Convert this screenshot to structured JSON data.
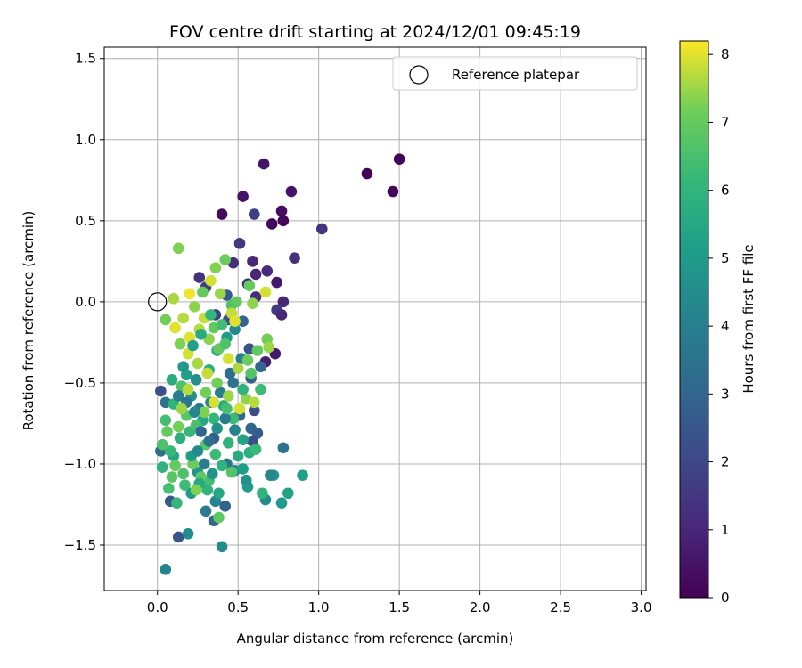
{
  "chart_data": {
    "type": "scatter",
    "title": "FOV centre drift starting at 2024/12/01 09:45:19",
    "xlabel": "Angular distance from reference (arcmin)",
    "ylabel": "Rotation from reference (arcmin)",
    "xlim": [
      -0.33,
      3.03
    ],
    "ylim": [
      -1.78,
      1.57
    ],
    "xticks": [
      0.0,
      0.5,
      1.0,
      1.5,
      2.0,
      2.5,
      3.0
    ],
    "xtick_labels": [
      "0.0",
      "0.5",
      "1.0",
      "1.5",
      "2.0",
      "2.5",
      "3.0"
    ],
    "yticks": [
      -1.5,
      -1.0,
      -0.5,
      0.0,
      0.5,
      1.0,
      1.5
    ],
    "ytick_labels": [
      "−1.5",
      "−1.0",
      "−0.5",
      "0.0",
      "0.5",
      "1.0",
      "1.5"
    ],
    "grid": true,
    "legend": {
      "position": "top-right",
      "label": "Reference platepar"
    },
    "reference_point": {
      "x": 0.0,
      "y": 0.0
    },
    "colorbar": {
      "label": "Hours from first FF file",
      "min": 0,
      "max": 8.2,
      "ticks": [
        0,
        1,
        2,
        3,
        4,
        5,
        6,
        7,
        8
      ],
      "tick_labels": [
        "0",
        "1",
        "2",
        "3",
        "4",
        "5",
        "6",
        "7",
        "8"
      ],
      "colormap": "viridis"
    },
    "points": [
      {
        "x": 1.5,
        "y": 0.88,
        "h": 0.1
      },
      {
        "x": 1.3,
        "y": 0.79,
        "h": 0.1
      },
      {
        "x": 1.46,
        "y": 0.68,
        "h": 0.1
      },
      {
        "x": 0.66,
        "y": 0.85,
        "h": 0.5
      },
      {
        "x": 0.83,
        "y": 0.68,
        "h": 0.5
      },
      {
        "x": 0.53,
        "y": 0.65,
        "h": 0.5
      },
      {
        "x": 0.77,
        "y": 0.56,
        "h": 0.3
      },
      {
        "x": 0.78,
        "y": 0.5,
        "h": 0.2
      },
      {
        "x": 0.71,
        "y": 0.48,
        "h": 0.2
      },
      {
        "x": 0.4,
        "y": 0.54,
        "h": 0.2
      },
      {
        "x": 0.6,
        "y": 0.54,
        "h": 1.8
      },
      {
        "x": 1.02,
        "y": 0.45,
        "h": 1.4
      },
      {
        "x": 0.51,
        "y": 0.36,
        "h": 1.5
      },
      {
        "x": 0.85,
        "y": 0.27,
        "h": 1.3
      },
      {
        "x": 0.59,
        "y": 0.25,
        "h": 1.0
      },
      {
        "x": 0.47,
        "y": 0.24,
        "h": 1.2
      },
      {
        "x": 0.68,
        "y": 0.19,
        "h": 1.1
      },
      {
        "x": 0.61,
        "y": 0.17,
        "h": 1.0
      },
      {
        "x": 0.74,
        "y": 0.12,
        "h": 0.6
      },
      {
        "x": 0.56,
        "y": 0.11,
        "h": 1.0
      },
      {
        "x": 0.26,
        "y": 0.15,
        "h": 1.4
      },
      {
        "x": 0.3,
        "y": 0.09,
        "h": 1.6
      },
      {
        "x": 0.43,
        "y": 0.04,
        "h": 2.5
      },
      {
        "x": 0.61,
        "y": 0.03,
        "h": 1.2
      },
      {
        "x": 0.78,
        "y": 0.0,
        "h": 1.0
      },
      {
        "x": 0.74,
        "y": -0.05,
        "h": 1.6
      },
      {
        "x": 0.77,
        "y": -0.08,
        "h": 1.0
      },
      {
        "x": 0.44,
        "y": -0.11,
        "h": 2.2
      },
      {
        "x": 0.53,
        "y": -0.12,
        "h": 3.0
      },
      {
        "x": 0.36,
        "y": -0.08,
        "h": 1.8
      },
      {
        "x": 0.57,
        "y": -0.29,
        "h": 2.3
      },
      {
        "x": 0.67,
        "y": -0.37,
        "h": 0.8
      },
      {
        "x": 0.73,
        "y": -0.32,
        "h": 0.6
      },
      {
        "x": 0.64,
        "y": -0.4,
        "h": 3.0
      },
      {
        "x": 0.58,
        "y": -0.47,
        "h": 2.8
      },
      {
        "x": 0.47,
        "y": -0.5,
        "h": 3.5
      },
      {
        "x": 0.02,
        "y": -0.55,
        "h": 2.2
      },
      {
        "x": 0.05,
        "y": -0.62,
        "h": 3.5
      },
      {
        "x": 0.6,
        "y": -0.67,
        "h": 2.2
      },
      {
        "x": 0.51,
        "y": -0.7,
        "h": 3.2
      },
      {
        "x": 0.58,
        "y": -0.78,
        "h": 3.0
      },
      {
        "x": 0.62,
        "y": -0.81,
        "h": 2.7
      },
      {
        "x": 0.78,
        "y": -0.9,
        "h": 3.5
      },
      {
        "x": 0.59,
        "y": -0.86,
        "h": 2.2
      },
      {
        "x": 0.35,
        "y": -0.84,
        "h": 2.8
      },
      {
        "x": 0.02,
        "y": -0.92,
        "h": 3.2
      },
      {
        "x": 0.08,
        "y": -1.23,
        "h": 2.5
      },
      {
        "x": 0.13,
        "y": -1.45,
        "h": 2.4
      },
      {
        "x": 0.19,
        "y": -1.43,
        "h": 4.5
      },
      {
        "x": 0.05,
        "y": -1.65,
        "h": 4.2
      },
      {
        "x": 0.4,
        "y": -1.51,
        "h": 4.5
      },
      {
        "x": 0.42,
        "y": -1.26,
        "h": 2.9
      },
      {
        "x": 0.35,
        "y": -1.35,
        "h": 3.0
      },
      {
        "x": 0.3,
        "y": -1.29,
        "h": 3.8
      },
      {
        "x": 0.36,
        "y": -1.23,
        "h": 4.2
      },
      {
        "x": 0.67,
        "y": -1.22,
        "h": 4.4
      },
      {
        "x": 0.77,
        "y": -1.24,
        "h": 5.0
      },
      {
        "x": 0.81,
        "y": -1.18,
        "h": 5.3
      },
      {
        "x": 0.72,
        "y": -1.07,
        "h": 4.8
      },
      {
        "x": 0.7,
        "y": -1.07,
        "h": 4.3
      },
      {
        "x": 0.9,
        "y": -1.07,
        "h": 5.2
      },
      {
        "x": 0.56,
        "y": -1.14,
        "h": 5.0
      },
      {
        "x": 0.55,
        "y": -1.1,
        "h": 4.6
      },
      {
        "x": 0.65,
        "y": -1.18,
        "h": 6.0
      },
      {
        "x": 0.48,
        "y": -1.04,
        "h": 4.2
      },
      {
        "x": 0.43,
        "y": -1.0,
        "h": 3.6
      },
      {
        "x": 0.25,
        "y": -1.05,
        "h": 4.8
      },
      {
        "x": 0.21,
        "y": -1.18,
        "h": 5.0
      },
      {
        "x": 0.12,
        "y": -1.24,
        "h": 6.1
      },
      {
        "x": 0.07,
        "y": -1.15,
        "h": 6.5
      },
      {
        "x": 0.03,
        "y": -1.02,
        "h": 5.9
      },
      {
        "x": 0.1,
        "y": -0.95,
        "h": 5.5
      },
      {
        "x": 0.14,
        "y": -0.84,
        "h": 5.8
      },
      {
        "x": 0.05,
        "y": -0.73,
        "h": 6.4
      },
      {
        "x": 0.1,
        "y": -0.63,
        "h": 6.0
      },
      {
        "x": 0.15,
        "y": -0.52,
        "h": 6.6
      },
      {
        "x": 0.18,
        "y": -0.45,
        "h": 5.2
      },
      {
        "x": 0.24,
        "y": -0.48,
        "h": 4.6
      },
      {
        "x": 0.32,
        "y": -0.42,
        "h": 5.8
      },
      {
        "x": 0.37,
        "y": -0.3,
        "h": 5.5
      },
      {
        "x": 0.43,
        "y": -0.22,
        "h": 5.0
      },
      {
        "x": 0.48,
        "y": -0.17,
        "h": 4.4
      },
      {
        "x": 0.52,
        "y": -0.35,
        "h": 4.0
      },
      {
        "x": 0.45,
        "y": -0.44,
        "h": 3.3
      },
      {
        "x": 0.39,
        "y": -0.56,
        "h": 3.9
      },
      {
        "x": 0.33,
        "y": -0.62,
        "h": 4.1
      },
      {
        "x": 0.26,
        "y": -0.66,
        "h": 3.7
      },
      {
        "x": 0.21,
        "y": -0.58,
        "h": 4.7
      },
      {
        "x": 0.28,
        "y": -0.73,
        "h": 5.4
      },
      {
        "x": 0.2,
        "y": -0.8,
        "h": 6.2
      },
      {
        "x": 0.3,
        "y": -0.88,
        "h": 6.8
      },
      {
        "x": 0.36,
        "y": -0.94,
        "h": 6.3
      },
      {
        "x": 0.44,
        "y": -0.87,
        "h": 6.0
      },
      {
        "x": 0.5,
        "y": -0.95,
        "h": 5.6
      },
      {
        "x": 0.53,
        "y": -1.03,
        "h": 5.1
      },
      {
        "x": 0.46,
        "y": -1.05,
        "h": 6.7
      },
      {
        "x": 0.4,
        "y": -1.01,
        "h": 5.9
      },
      {
        "x": 0.32,
        "y": -1.1,
        "h": 6.4
      },
      {
        "x": 0.27,
        "y": -1.08,
        "h": 6.9
      },
      {
        "x": 0.22,
        "y": -1.0,
        "h": 7.1
      },
      {
        "x": 0.16,
        "y": -1.06,
        "h": 6.6
      },
      {
        "x": 0.11,
        "y": -1.01,
        "h": 7.0
      },
      {
        "x": 0.08,
        "y": -0.92,
        "h": 6.2
      },
      {
        "x": 0.13,
        "y": -0.77,
        "h": 7.2
      },
      {
        "x": 0.18,
        "y": -0.7,
        "h": 6.8
      },
      {
        "x": 0.24,
        "y": -0.76,
        "h": 6.5
      },
      {
        "x": 0.29,
        "y": -0.68,
        "h": 7.3
      },
      {
        "x": 0.35,
        "y": -0.72,
        "h": 6.1
      },
      {
        "x": 0.41,
        "y": -0.64,
        "h": 5.7
      },
      {
        "x": 0.47,
        "y": -0.72,
        "h": 6.3
      },
      {
        "x": 0.55,
        "y": -0.6,
        "h": 7.4
      },
      {
        "x": 0.6,
        "y": -0.62,
        "h": 7.7
      },
      {
        "x": 0.51,
        "y": -0.66,
        "h": 7.9
      },
      {
        "x": 0.44,
        "y": -0.58,
        "h": 7.5
      },
      {
        "x": 0.37,
        "y": -0.5,
        "h": 7.2
      },
      {
        "x": 0.31,
        "y": -0.44,
        "h": 7.8
      },
      {
        "x": 0.25,
        "y": -0.38,
        "h": 7.6
      },
      {
        "x": 0.19,
        "y": -0.32,
        "h": 7.9
      },
      {
        "x": 0.14,
        "y": -0.26,
        "h": 7.3
      },
      {
        "x": 0.2,
        "y": -0.22,
        "h": 8.0
      },
      {
        "x": 0.26,
        "y": -0.17,
        "h": 7.7
      },
      {
        "x": 0.32,
        "y": -0.23,
        "h": 7.4
      },
      {
        "x": 0.38,
        "y": -0.29,
        "h": 7.0
      },
      {
        "x": 0.44,
        "y": -0.35,
        "h": 7.9
      },
      {
        "x": 0.5,
        "y": -0.41,
        "h": 7.6
      },
      {
        "x": 0.56,
        "y": -0.36,
        "h": 7.1
      },
      {
        "x": 0.62,
        "y": -0.3,
        "h": 6.9
      },
      {
        "x": 0.68,
        "y": -0.23,
        "h": 7.2
      },
      {
        "x": 0.69,
        "y": -0.28,
        "h": 7.5
      },
      {
        "x": 0.58,
        "y": -0.44,
        "h": 6.7
      },
      {
        "x": 0.64,
        "y": -0.54,
        "h": 6.3
      },
      {
        "x": 0.53,
        "y": -0.54,
        "h": 5.9
      },
      {
        "x": 0.42,
        "y": -0.26,
        "h": 6.6
      },
      {
        "x": 0.35,
        "y": -0.16,
        "h": 7.0
      },
      {
        "x": 0.29,
        "y": -0.1,
        "h": 7.8
      },
      {
        "x": 0.23,
        "y": -0.03,
        "h": 7.4
      },
      {
        "x": 0.16,
        "y": -0.1,
        "h": 7.7
      },
      {
        "x": 0.11,
        "y": -0.16,
        "h": 8.0
      },
      {
        "x": 0.05,
        "y": -0.11,
        "h": 7.2
      },
      {
        "x": 0.1,
        "y": 0.02,
        "h": 7.6
      },
      {
        "x": 0.2,
        "y": 0.05,
        "h": 8.1
      },
      {
        "x": 0.28,
        "y": 0.06,
        "h": 7.0
      },
      {
        "x": 0.33,
        "y": 0.13,
        "h": 7.9
      },
      {
        "x": 0.36,
        "y": 0.21,
        "h": 7.3
      },
      {
        "x": 0.42,
        "y": 0.26,
        "h": 7.1
      },
      {
        "x": 0.39,
        "y": 0.05,
        "h": 7.5
      },
      {
        "x": 0.46,
        "y": -0.02,
        "h": 6.6
      },
      {
        "x": 0.49,
        "y": 0.0,
        "h": 6.9
      },
      {
        "x": 0.57,
        "y": 0.1,
        "h": 7.0
      },
      {
        "x": 0.59,
        "y": -0.01,
        "h": 7.4
      },
      {
        "x": 0.67,
        "y": 0.06,
        "h": 7.9
      },
      {
        "x": 0.13,
        "y": 0.33,
        "h": 7.3
      },
      {
        "x": 0.46,
        "y": -0.07,
        "h": 7.8
      },
      {
        "x": 0.48,
        "y": -0.12,
        "h": 8.0
      },
      {
        "x": 0.4,
        "y": -0.14,
        "h": 6.4
      },
      {
        "x": 0.33,
        "y": -0.08,
        "h": 6.1
      },
      {
        "x": 0.27,
        "y": -0.2,
        "h": 5.6
      },
      {
        "x": 0.22,
        "y": -0.27,
        "h": 5.2
      },
      {
        "x": 0.16,
        "y": -0.4,
        "h": 4.9
      },
      {
        "x": 0.09,
        "y": -0.48,
        "h": 5.7
      },
      {
        "x": 0.13,
        "y": -0.58,
        "h": 4.0
      },
      {
        "x": 0.18,
        "y": -0.62,
        "h": 3.6
      },
      {
        "x": 0.23,
        "y": -0.68,
        "h": 4.3
      },
      {
        "x": 0.27,
        "y": -0.8,
        "h": 3.1
      },
      {
        "x": 0.32,
        "y": -0.86,
        "h": 3.4
      },
      {
        "x": 0.37,
        "y": -0.78,
        "h": 4.6
      },
      {
        "x": 0.42,
        "y": -0.72,
        "h": 3.8
      },
      {
        "x": 0.48,
        "y": -0.79,
        "h": 4.1
      },
      {
        "x": 0.53,
        "y": -0.85,
        "h": 5.3
      },
      {
        "x": 0.57,
        "y": -0.93,
        "h": 5.8
      },
      {
        "x": 0.61,
        "y": -0.91,
        "h": 6.2
      },
      {
        "x": 0.21,
        "y": -0.95,
        "h": 5.1
      },
      {
        "x": 0.25,
        "y": -0.92,
        "h": 4.4
      },
      {
        "x": 0.29,
        "y": -1.0,
        "h": 3.9
      },
      {
        "x": 0.34,
        "y": -1.06,
        "h": 4.7
      },
      {
        "x": 0.38,
        "y": -1.18,
        "h": 5.5
      },
      {
        "x": 0.31,
        "y": -1.16,
        "h": 6.0
      },
      {
        "x": 0.26,
        "y": -1.12,
        "h": 5.6
      },
      {
        "x": 0.17,
        "y": -1.13,
        "h": 6.3
      },
      {
        "x": 0.09,
        "y": -1.08,
        "h": 6.8
      },
      {
        "x": 0.03,
        "y": -0.88,
        "h": 6.6
      },
      {
        "x": 0.06,
        "y": -0.8,
        "h": 7.0
      },
      {
        "x": 0.38,
        "y": -1.33,
        "h": 6.9
      },
      {
        "x": 0.24,
        "y": -1.16,
        "h": 7.3
      },
      {
        "x": 0.15,
        "y": -0.66,
        "h": 7.5
      },
      {
        "x": 0.19,
        "y": -0.54,
        "h": 7.7
      },
      {
        "x": 0.3,
        "y": -0.56,
        "h": 7.2
      },
      {
        "x": 0.35,
        "y": -0.62,
        "h": 7.9
      },
      {
        "x": 0.43,
        "y": -0.66,
        "h": 6.5
      }
    ]
  }
}
